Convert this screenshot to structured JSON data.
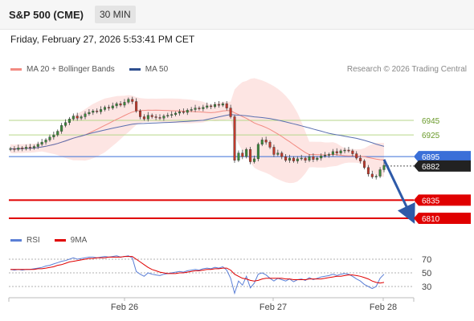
{
  "header": {
    "title": "S&P 500 (CME)",
    "timeframe": "30 MIN",
    "datetime": "Friday, February 27, 2026 5:53:41 PM CET"
  },
  "legend": {
    "ma20_label": "MA 20 + Bollinger Bands",
    "ma50_label": "MA 50",
    "ma20_color": "#f28b82",
    "ma50_color": "#2e4f8f"
  },
  "credit": "Research © 2026 Trading Central",
  "chart_data": [
    {
      "type": "candlestick",
      "ylim": [
        6790,
        6990
      ],
      "x_ticks": [
        "Feb 26",
        "Feb 27",
        "Feb 28"
      ],
      "levels": [
        {
          "value": 6945,
          "label": "6945",
          "color": "#b6d68a",
          "text_color": "#6a9a2a",
          "style": "line"
        },
        {
          "value": 6925,
          "label": "6925",
          "color": "#b6d68a",
          "text_color": "#6a9a2a",
          "style": "line"
        },
        {
          "value": 6895,
          "label": "6895",
          "color": "#3a6fd8",
          "text_color": "#ffffff",
          "style": "tag"
        },
        {
          "value": 6882,
          "label": "6882",
          "color": "#222222",
          "text_color": "#ffffff",
          "style": "tag"
        },
        {
          "value": 6835,
          "label": "6835",
          "color": "#e00000",
          "text_color": "#ffffff",
          "style": "tag"
        },
        {
          "value": 6810,
          "label": "6810",
          "color": "#e00000",
          "text_color": "#ffffff",
          "style": "tag"
        }
      ],
      "close": [
        6906,
        6905,
        6907,
        6906,
        6908,
        6907,
        6909,
        6912,
        6915,
        6918,
        6922,
        6925,
        6930,
        6938,
        6942,
        6947,
        6951,
        6948,
        6950,
        6954,
        6956,
        6958,
        6957,
        6960,
        6963,
        6962,
        6965,
        6968,
        6966,
        6970,
        6974,
        6971,
        6958,
        6950,
        6947,
        6952,
        6950,
        6949,
        6948,
        6951,
        6952,
        6953,
        6955,
        6957,
        6956,
        6959,
        6960,
        6962,
        6961,
        6963,
        6965,
        6964,
        6967,
        6966,
        6968,
        6962,
        6950,
        6890,
        6900,
        6895,
        6905,
        6888,
        6892,
        6912,
        6918,
        6915,
        6908,
        6898,
        6900,
        6895,
        6890,
        6893,
        6889,
        6892,
        6893,
        6890,
        6895,
        6891,
        6893,
        6896,
        6897,
        6898,
        6902,
        6900,
        6903,
        6904,
        6903,
        6899,
        6893,
        6889,
        6880,
        6871,
        6867,
        6868,
        6877,
        6883
      ],
      "rsi": [
        55,
        54,
        55,
        54,
        55,
        55,
        56,
        57,
        58,
        60,
        61,
        63,
        65,
        67,
        68,
        70,
        72,
        70,
        71,
        72,
        73,
        73,
        72,
        73,
        74,
        73,
        74,
        75,
        73,
        74,
        75,
        72,
        52,
        48,
        45,
        50,
        48,
        47,
        46,
        48,
        49,
        50,
        51,
        52,
        51,
        53,
        54,
        55,
        54,
        56,
        57,
        56,
        58,
        57,
        59,
        54,
        42,
        20,
        38,
        32,
        45,
        28,
        35,
        48,
        50,
        47,
        42,
        38,
        42,
        40,
        38,
        41,
        37,
        40,
        41,
        39,
        43,
        40,
        42,
        44,
        45,
        46,
        48,
        46,
        48,
        49,
        48,
        45,
        41,
        38,
        33,
        30,
        27,
        30,
        42,
        48
      ],
      "rsi_signal": [
        55,
        55,
        55,
        55,
        55,
        55,
        55,
        56,
        56,
        57,
        58,
        59,
        61,
        62,
        64,
        66,
        67,
        68,
        69,
        70,
        71,
        71,
        72,
        72,
        72,
        73,
        73,
        73,
        73,
        74,
        74,
        74,
        70,
        66,
        62,
        58,
        55,
        53,
        51,
        50,
        49,
        49,
        49,
        50,
        50,
        51,
        52,
        53,
        53,
        54,
        55,
        55,
        56,
        56,
        57,
        57,
        54,
        48,
        45,
        42,
        41,
        39,
        38,
        39,
        41,
        42,
        42,
        42,
        42,
        42,
        41,
        41,
        40,
        40,
        40,
        40,
        41,
        41,
        41,
        41,
        42,
        43,
        44,
        45,
        45,
        46,
        47,
        47,
        46,
        45,
        43,
        41,
        38,
        36,
        35,
        36
      ],
      "rsi_ticks": [
        70,
        50,
        30
      ],
      "rsi_legend": {
        "rsi_label": "RSI",
        "signal_label": "9MA",
        "rsi_color": "#5b7fd6",
        "signal_color": "#e00000"
      }
    }
  ]
}
